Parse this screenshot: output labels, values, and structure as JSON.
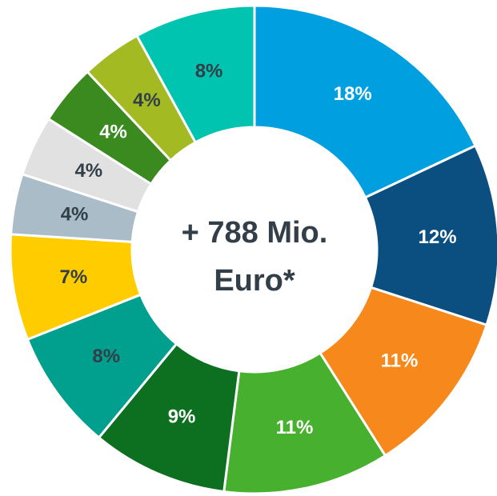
{
  "chart_data": {
    "type": "donut",
    "center_text": [
      "+ 788 Mio.",
      "Euro*"
    ],
    "values": [
      18,
      12,
      11,
      11,
      9,
      8,
      7,
      4,
      4,
      4,
      4,
      8
    ],
    "value_labels": [
      "18%",
      "12%",
      "11%",
      "11%",
      "9%",
      "8%",
      "7%",
      "4%",
      "4%",
      "4%",
      "4%",
      "8%"
    ],
    "colors": [
      "#00a0e0",
      "#0a4f80",
      "#f7891c",
      "#48b02f",
      "#0d6f20",
      "#009f8e",
      "#ffcc00",
      "#a9bcc8",
      "#e1e1e1",
      "#3a8a20",
      "#a3ba22",
      "#00c4b0"
    ],
    "label_colors": [
      "#ffffff",
      "#ffffff",
      "#ffffff",
      "#ffffff",
      "#ffffff",
      "#333f48",
      "#333f48",
      "#333f48",
      "#333f48",
      "#ffffff",
      "#333f48",
      "#333f48"
    ]
  }
}
